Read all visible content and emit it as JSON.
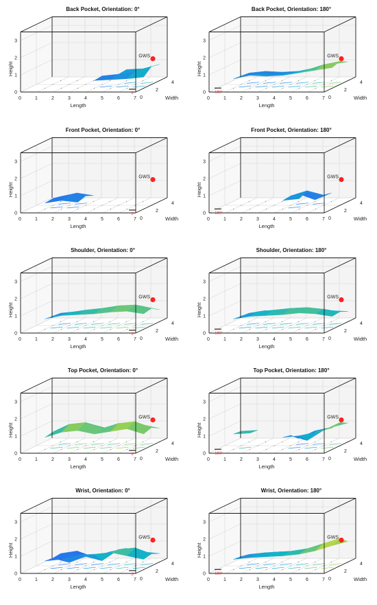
{
  "figure": {
    "colors": {
      "axes": "#1a1a1a",
      "grid": "#d6d6d6",
      "wall": "#f4f4f4",
      "gws_marker": "#ff2020",
      "orientation_mark": "#e03030",
      "surface_low": "#3b3aa8",
      "surface_mid": "#1fa8c8",
      "surface_high": "#f6e03a"
    }
  },
  "chart_data": [
    {
      "type": "surface3d",
      "title": "Back Pocket, Orientation: 0°",
      "xlabel": "Length",
      "ylabel": "Width",
      "zlabel": "Height",
      "x_ticks": [
        0,
        1,
        2,
        3,
        4,
        5,
        6,
        7
      ],
      "y_ticks": [
        0,
        2,
        4
      ],
      "z_ticks": [
        0,
        1,
        2,
        3
      ],
      "xlim": [
        0,
        7
      ],
      "ylim": [
        0,
        4
      ],
      "zlim": [
        0,
        3.5
      ],
      "grid": true,
      "marker": {
        "label": "GWS",
        "x": 7,
        "y": 2,
        "z": 1.5
      },
      "orientation_label": "0°",
      "orientation_mark_at": "length-end",
      "surface_z": [
        [
          0,
          0,
          0,
          0,
          0,
          0,
          0,
          0
        ],
        [
          0,
          0,
          0,
          0,
          0.45,
          0.5,
          0.55,
          0.65
        ],
        [
          0,
          0,
          0,
          0,
          0.5,
          0.6,
          0.75,
          1.05
        ],
        [
          0,
          0,
          0,
          0,
          0,
          0.65,
          0.7,
          0.95
        ],
        [
          0,
          0,
          0,
          0,
          0,
          0,
          0,
          0
        ]
      ]
    },
    {
      "type": "surface3d",
      "title": "Back Pocket, Orientation: 180°",
      "xlabel": "Length",
      "ylabel": "Width",
      "zlabel": "Height",
      "x_ticks": [
        0,
        1,
        2,
        3,
        4,
        5,
        6,
        7
      ],
      "y_ticks": [
        0,
        2,
        4
      ],
      "z_ticks": [
        0,
        1,
        2,
        3
      ],
      "xlim": [
        0,
        7
      ],
      "ylim": [
        0,
        4
      ],
      "zlim": [
        0,
        3.5
      ],
      "grid": true,
      "marker": {
        "label": "GWS",
        "x": 7,
        "y": 2,
        "z": 1.5
      },
      "orientation_label": "180°",
      "orientation_mark_at": "length-start",
      "surface_z": [
        [
          0,
          0,
          0,
          0,
          0,
          0,
          0,
          0
        ],
        [
          0,
          0.55,
          0.75,
          0.7,
          0.75,
          0.9,
          1.05,
          1.2
        ],
        [
          0,
          0.5,
          0.6,
          0.55,
          0.65,
          0.85,
          1.15,
          1.35
        ],
        [
          0,
          0.45,
          0.55,
          0.5,
          0.55,
          0.75,
          0.95,
          1.1
        ],
        [
          0,
          0,
          0,
          0,
          0,
          0,
          0,
          0
        ]
      ]
    },
    {
      "type": "surface3d",
      "title": "Front Pocket, Orientation: 0°",
      "xlabel": "Length",
      "ylabel": "Width",
      "zlabel": "Height",
      "x_ticks": [
        0,
        1,
        2,
        3,
        4,
        5,
        6,
        7
      ],
      "y_ticks": [
        0,
        2,
        4
      ],
      "z_ticks": [
        0,
        1,
        2,
        3
      ],
      "xlim": [
        0,
        7
      ],
      "ylim": [
        0,
        4
      ],
      "zlim": [
        0,
        3.5
      ],
      "grid": true,
      "marker": {
        "label": "GWS",
        "x": 7,
        "y": 2,
        "z": 1.5
      },
      "orientation_label": "0°",
      "orientation_mark_at": "length-end",
      "surface_z": [
        [
          0,
          0,
          0,
          0,
          0,
          0,
          0,
          0
        ],
        [
          0,
          0.35,
          0.5,
          0.4,
          0,
          0,
          0,
          0
        ],
        [
          0,
          0.4,
          0.6,
          0.55,
          0,
          0,
          0,
          0
        ],
        [
          0,
          0.3,
          0.5,
          0.35,
          0,
          0,
          0,
          0
        ],
        [
          0,
          0,
          0,
          0,
          0,
          0,
          0,
          0
        ]
      ]
    },
    {
      "type": "surface3d",
      "title": "Front Pocket, Orientation: 180°",
      "xlabel": "Length",
      "ylabel": "Width",
      "zlabel": "Height",
      "x_ticks": [
        0,
        1,
        2,
        3,
        4,
        5,
        6,
        7
      ],
      "y_ticks": [
        0,
        2,
        4
      ],
      "z_ticks": [
        0,
        1,
        2,
        3
      ],
      "xlim": [
        0,
        7
      ],
      "ylim": [
        0,
        4
      ],
      "zlim": [
        0,
        3.5
      ],
      "grid": true,
      "marker": {
        "label": "GWS",
        "x": 7,
        "y": 2,
        "z": 1.5
      },
      "orientation_label": "180°",
      "orientation_mark_at": "length-start",
      "surface_z": [
        [
          0,
          0,
          0,
          0,
          0,
          0,
          0,
          0
        ],
        [
          0,
          0,
          0,
          0,
          0.5,
          0.6,
          0,
          0
        ],
        [
          0,
          0,
          0,
          0,
          0.55,
          0.85,
          0.6,
          0
        ],
        [
          0,
          0,
          0,
          0,
          0.45,
          0.1,
          0.5,
          0
        ],
        [
          0,
          0,
          0,
          0,
          0,
          0,
          0,
          0
        ]
      ]
    },
    {
      "type": "surface3d",
      "title": "Shoulder, Orientation: 0°",
      "xlabel": "Length",
      "ylabel": "Width",
      "zlabel": "Height",
      "x_ticks": [
        0,
        1,
        2,
        3,
        4,
        5,
        6,
        7
      ],
      "y_ticks": [
        0,
        2,
        4
      ],
      "z_ticks": [
        0,
        1,
        2,
        3
      ],
      "xlim": [
        0,
        7
      ],
      "ylim": [
        0,
        4
      ],
      "zlim": [
        0,
        3.5
      ],
      "grid": true,
      "marker": {
        "label": "GWS",
        "x": 7,
        "y": 2,
        "z": 1.5
      },
      "orientation_label": "0°",
      "orientation_mark_at": "length-end",
      "surface_z": [
        [
          0,
          0,
          0,
          0,
          0,
          0,
          0,
          0
        ],
        [
          0,
          0.6,
          0.8,
          0.85,
          0.9,
          1.0,
          1.05,
          0.9
        ],
        [
          0,
          0.55,
          0.75,
          0.9,
          1.0,
          1.15,
          1.2,
          1.0
        ],
        [
          0,
          0.5,
          0.6,
          0.7,
          0.85,
          0.95,
          0.9,
          0.7
        ],
        [
          0,
          0,
          0,
          0,
          0,
          0,
          0,
          0
        ]
      ]
    },
    {
      "type": "surface3d",
      "title": "Shoulder, Orientation: 180°",
      "xlabel": "Length",
      "ylabel": "Width",
      "zlabel": "Height",
      "x_ticks": [
        0,
        1,
        2,
        3,
        4,
        5,
        6,
        7
      ],
      "y_ticks": [
        0,
        2,
        4
      ],
      "z_ticks": [
        0,
        1,
        2,
        3
      ],
      "xlim": [
        0,
        7
      ],
      "ylim": [
        0,
        4
      ],
      "zlim": [
        0,
        3.5
      ],
      "grid": true,
      "marker": {
        "label": "GWS",
        "x": 7,
        "y": 2,
        "z": 1.5
      },
      "orientation_label": "180°",
      "orientation_mark_at": "length-start",
      "surface_z": [
        [
          0,
          0,
          0,
          0,
          0,
          0,
          0,
          0
        ],
        [
          0,
          0.6,
          0.75,
          0.8,
          0.85,
          0.95,
          0.9,
          0.75
        ],
        [
          0,
          0.55,
          0.8,
          0.9,
          1.0,
          1.05,
          0.95,
          0.8
        ],
        [
          0,
          0.5,
          0.65,
          0.6,
          0.7,
          0.55,
          0.65,
          0.6
        ],
        [
          0,
          0,
          0,
          0,
          0,
          0,
          0,
          0
        ]
      ]
    },
    {
      "type": "surface3d",
      "title": "Top Pocket, Orientation: 0°",
      "xlabel": "Length",
      "ylabel": "Width",
      "zlabel": "Height",
      "x_ticks": [
        0,
        1,
        2,
        3,
        4,
        5,
        6,
        7
      ],
      "y_ticks": [
        0,
        2,
        4
      ],
      "z_ticks": [
        0,
        1,
        2,
        3
      ],
      "xlim": [
        0,
        7
      ],
      "ylim": [
        0,
        4
      ],
      "zlim": [
        0,
        3.5
      ],
      "grid": true,
      "marker": {
        "label": "GWS",
        "x": 7,
        "y": 2,
        "z": 1.5
      },
      "orientation_label": "0°",
      "orientation_mark_at": "length-end",
      "surface_z": [
        [
          0,
          0,
          0,
          0,
          0,
          0,
          0,
          0
        ],
        [
          0,
          0.7,
          1.0,
          1.1,
          0.9,
          1.05,
          1.2,
          0.9
        ],
        [
          0,
          0.8,
          1.25,
          1.35,
          1.0,
          1.3,
          1.4,
          1.05
        ],
        [
          0,
          0.6,
          0.9,
          1.0,
          0.75,
          0.95,
          1.0,
          0.8
        ],
        [
          0,
          0,
          0,
          0,
          0,
          0,
          0,
          0
        ]
      ]
    },
    {
      "type": "surface3d",
      "title": "Top Pocket, Orientation: 180°",
      "xlabel": "Length",
      "ylabel": "Width",
      "zlabel": "Height",
      "x_ticks": [
        0,
        1,
        2,
        3,
        4,
        5,
        6,
        7
      ],
      "y_ticks": [
        0,
        2,
        4
      ],
      "z_ticks": [
        0,
        1,
        2,
        3
      ],
      "xlim": [
        0,
        7
      ],
      "ylim": [
        0,
        4
      ],
      "zlim": [
        0,
        3.5
      ],
      "grid": true,
      "marker": {
        "label": "GWS",
        "x": 7,
        "y": 2,
        "z": 1.5
      },
      "orientation_label": "180°",
      "orientation_mark_at": "length-start",
      "surface_z": [
        [
          0,
          0,
          0,
          0,
          0,
          0,
          0,
          0
        ],
        [
          0,
          0.9,
          0.95,
          0,
          0.7,
          0.8,
          1.0,
          1.25
        ],
        [
          0,
          0.85,
          0.9,
          0,
          0.6,
          0.3,
          0.9,
          1.35
        ],
        [
          0,
          0,
          0,
          0,
          0.2,
          0.65,
          0.85,
          1.1
        ],
        [
          0,
          0,
          0,
          0,
          0,
          0,
          0,
          0
        ]
      ]
    },
    {
      "type": "surface3d",
      "title": "Wrist, Orientation: 0°",
      "xlabel": "Length",
      "ylabel": "Width",
      "zlabel": "Height",
      "x_ticks": [
        0,
        1,
        2,
        3,
        4,
        5,
        6,
        7
      ],
      "y_ticks": [
        0,
        2,
        4
      ],
      "z_ticks": [
        0,
        1,
        2,
        3
      ],
      "xlim": [
        0,
        7
      ],
      "ylim": [
        0,
        4
      ],
      "zlim": [
        0,
        3.5
      ],
      "grid": true,
      "marker": {
        "label": "GWS",
        "x": 7,
        "y": 2,
        "z": 1.5
      },
      "orientation_label": "0°",
      "orientation_mark_at": "length-end",
      "surface_z": [
        [
          0,
          0,
          0,
          0,
          0,
          0,
          0,
          0
        ],
        [
          0,
          0.5,
          0.6,
          0.85,
          0.9,
          1.0,
          0.8,
          0.6
        ],
        [
          0,
          0.45,
          0.2,
          0.55,
          0.3,
          0.95,
          1.05,
          0.7
        ],
        [
          0,
          0.5,
          0.65,
          0.3,
          0.6,
          0.8,
          0.6,
          0.5
        ],
        [
          0,
          0,
          0,
          0,
          0,
          0,
          0,
          0
        ]
      ]
    },
    {
      "type": "surface3d",
      "title": "Wrist, Orientation: 180°",
      "xlabel": "Length",
      "ylabel": "Width",
      "zlabel": "Height",
      "x_ticks": [
        0,
        1,
        2,
        3,
        4,
        5,
        6,
        7
      ],
      "y_ticks": [
        0,
        2,
        4
      ],
      "z_ticks": [
        0,
        1,
        2,
        3
      ],
      "xlim": [
        0,
        7
      ],
      "ylim": [
        0,
        4
      ],
      "zlim": [
        0,
        3.5
      ],
      "grid": true,
      "marker": {
        "label": "GWS",
        "x": 7,
        "y": 2,
        "z": 1.5
      },
      "orientation_label": "180°",
      "orientation_mark_at": "length-start",
      "surface_z": [
        [
          0,
          0,
          0,
          0,
          0,
          0,
          0,
          0
        ],
        [
          0,
          0.6,
          0.7,
          0.75,
          0.8,
          0.9,
          1.1,
          1.4
        ],
        [
          0,
          0.55,
          0.7,
          0.8,
          0.85,
          1.0,
          1.3,
          1.6
        ],
        [
          0,
          0.45,
          0.55,
          0.6,
          0.65,
          0.75,
          0.95,
          1.2
        ],
        [
          0,
          0,
          0,
          0,
          0,
          0,
          0,
          0
        ]
      ]
    }
  ]
}
